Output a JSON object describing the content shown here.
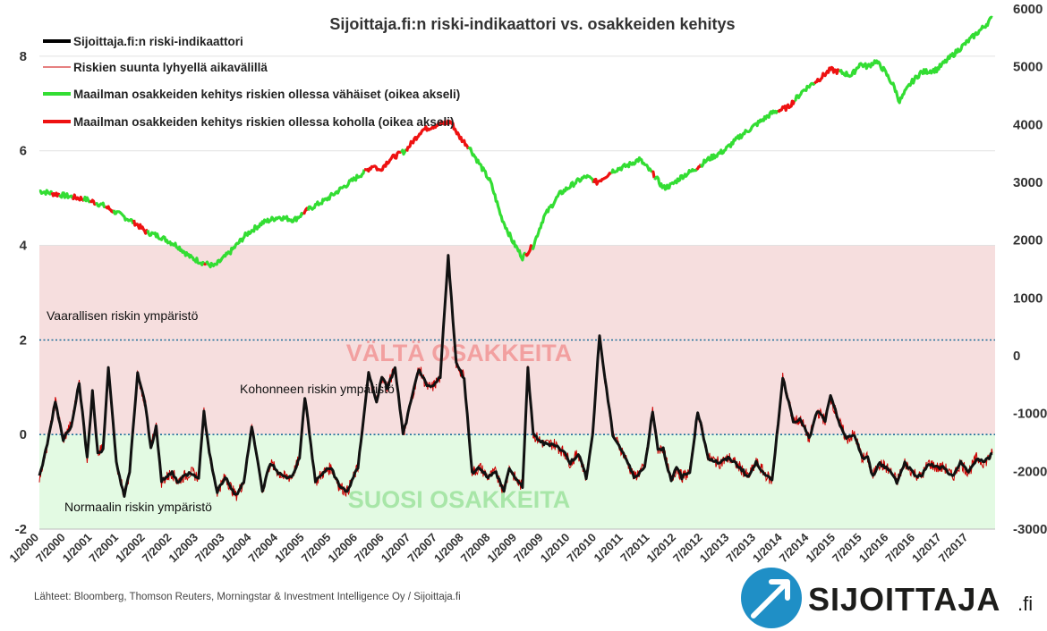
{
  "chart_data": {
    "type": "line",
    "title": "Sijoittaja.fi:n riski-indikaattori vs. osakkeiden kehitys",
    "left_axis": {
      "ylim": [
        -2,
        9
      ],
      "ticks": [
        -2,
        0,
        2,
        4,
        6,
        8
      ]
    },
    "right_axis": {
      "ylim": [
        -3000,
        6000
      ],
      "ticks": [
        -3000,
        -2000,
        -1000,
        0,
        1000,
        2000,
        3000,
        4000,
        5000,
        6000
      ]
    },
    "x_ticks": [
      "1/2000",
      "7/2000",
      "1/2001",
      "7/2001",
      "1/2002",
      "7/2002",
      "1/2003",
      "7/2003",
      "1/2004",
      "7/2004",
      "1/2005",
      "7/2005",
      "1/2006",
      "7/2006",
      "1/2007",
      "7/2007",
      "1/2008",
      "7/2008",
      "1/2009",
      "7/2009",
      "1/2010",
      "7/2010",
      "1/2011",
      "7/2011",
      "1/2012",
      "7/2012",
      "1/2013",
      "7/2013",
      "1/2014",
      "7/2014",
      "1/2015",
      "7/2015",
      "1/2016",
      "7/2016",
      "1/2017",
      "7/2017"
    ],
    "x_range": [
      2000.0,
      2018.0
    ],
    "legend": {
      "position": "top-left",
      "items": [
        {
          "label": "Sijoittaja.fi:n riski-indikaattori",
          "color": "#000000",
          "width": 4
        },
        {
          "label": "Riskien suunta lyhyellä aikavälillä",
          "color": "#cc0000",
          "width": 1
        },
        {
          "label": "Maailman osakkeiden kehitys riskien ollessa vähäiset (oikea akseli)",
          "color": "#33dd33",
          "width": 4
        },
        {
          "label": "Maailman osakkeiden kehitys riskien ollessa koholla (oikea akseli)",
          "color": "#ee1111",
          "width": 4
        }
      ]
    },
    "zones": [
      {
        "from": 0,
        "to": 4,
        "color": "#f6dede",
        "label": "VÄLTÄ OSAKKEITA",
        "label_color": "#f2a0a0"
      },
      {
        "from": -2,
        "to": 0,
        "color": "#e3fae3",
        "label": "SUOSI OSAKKEITA",
        "label_color": "#a8e6a8"
      }
    ],
    "threshold_lines": [
      0,
      2
    ],
    "annotations": [
      "Vaarallisen riskin ympäristö",
      "Kohonneen riskin ympäristö",
      "Normaalin riskin ympäristö"
    ],
    "risk_indicator": {
      "x": [
        2000.0,
        2000.15,
        2000.3,
        2000.45,
        2000.6,
        2000.75,
        2000.9,
        2001.0,
        2001.1,
        2001.2,
        2001.3,
        2001.45,
        2001.6,
        2001.7,
        2001.85,
        2002.0,
        2002.1,
        2002.2,
        2002.3,
        2002.5,
        2002.6,
        2002.7,
        2002.85,
        2003.0,
        2003.1,
        2003.2,
        2003.35,
        2003.5,
        2003.7,
        2003.85,
        2004.0,
        2004.2,
        2004.35,
        2004.5,
        2004.6,
        2004.75,
        2004.9,
        2005.0,
        2005.2,
        2005.35,
        2005.5,
        2005.65,
        2005.8,
        2006.0,
        2006.2,
        2006.35,
        2006.45,
        2006.55,
        2006.7,
        2006.85,
        2007.0,
        2007.15,
        2007.3,
        2007.4,
        2007.55,
        2007.7,
        2007.85,
        2008.0,
        2008.15,
        2008.3,
        2008.45,
        2008.6,
        2008.75,
        2008.85,
        2009.0,
        2009.1,
        2009.2,
        2009.3,
        2009.5,
        2009.7,
        2009.9,
        2010.0,
        2010.15,
        2010.3,
        2010.42,
        2010.55,
        2010.65,
        2010.8,
        2011.0,
        2011.2,
        2011.4,
        2011.55,
        2011.65,
        2011.75,
        2011.9,
        2012.0,
        2012.1,
        2012.25,
        2012.4,
        2012.6,
        2012.8,
        2013.0,
        2013.2,
        2013.35,
        2013.5,
        2013.65,
        2013.8,
        2014.0,
        2014.2,
        2014.35,
        2014.5,
        2014.65,
        2014.8,
        2014.9,
        2015.05,
        2015.2,
        2015.35,
        2015.5,
        2015.6,
        2015.7,
        2015.8,
        2015.95,
        2016.05,
        2016.15,
        2016.3,
        2016.45,
        2016.6,
        2016.75,
        2016.9,
        2017.05,
        2017.2,
        2017.35,
        2017.5,
        2017.65,
        2017.8,
        2017.95
      ],
      "y": [
        -0.9,
        -0.2,
        0.7,
        -0.1,
        0.2,
        1.1,
        -0.5,
        0.9,
        -0.4,
        -0.3,
        1.4,
        -0.6,
        -1.3,
        -0.8,
        1.3,
        0.6,
        -0.3,
        0.2,
        -1.0,
        -0.8,
        -1.0,
        -0.9,
        -0.8,
        -0.9,
        0.5,
        -0.4,
        -1.2,
        -0.9,
        -1.3,
        -1.0,
        0.2,
        -1.2,
        -0.6,
        -0.8,
        -0.9,
        -0.9,
        -0.5,
        0.8,
        -1.0,
        -0.8,
        -0.7,
        -1.1,
        -1.2,
        -0.7,
        1.3,
        0.7,
        1.2,
        1.0,
        1.4,
        0.0,
        0.7,
        1.4,
        1.0,
        1.0,
        1.2,
        3.8,
        1.5,
        1.2,
        -0.8,
        -0.7,
        -0.9,
        -0.8,
        -1.2,
        -0.7,
        -1.0,
        -1.1,
        1.4,
        0.0,
        -0.2,
        -0.2,
        -0.4,
        -0.6,
        -0.4,
        -0.9,
        0.0,
        2.1,
        1.2,
        0.0,
        -0.4,
        -0.9,
        -0.7,
        0.5,
        -0.3,
        -0.3,
        -1.0,
        -0.7,
        -0.9,
        -0.8,
        0.5,
        -0.5,
        -0.6,
        -0.5,
        -0.7,
        -0.9,
        -0.6,
        -0.8,
        -1.0,
        1.2,
        0.3,
        0.3,
        -0.1,
        0.5,
        0.3,
        0.8,
        0.3,
        -0.1,
        0.0,
        -0.5,
        -0.5,
        -0.9,
        -0.6,
        -0.7,
        -0.8,
        -1.0,
        -0.6,
        -0.8,
        -0.9,
        -0.6,
        -0.7,
        -0.7,
        -0.9,
        -0.6,
        -0.8,
        -0.5,
        -0.6,
        -0.4
      ]
    },
    "stocks": {
      "x": [
        2000.0,
        2000.3,
        2000.6,
        2000.9,
        2001.2,
        2001.5,
        2001.8,
        2002.0,
        2002.3,
        2002.6,
        2002.85,
        2003.1,
        2003.3,
        2003.6,
        2003.9,
        2004.2,
        2004.5,
        2004.8,
        2005.1,
        2005.4,
        2005.7,
        2006.0,
        2006.3,
        2006.4,
        2006.6,
        2006.9,
        2007.2,
        2007.5,
        2007.75,
        2007.9,
        2008.1,
        2008.3,
        2008.5,
        2008.7,
        2008.9,
        2009.1,
        2009.3,
        2009.5,
        2009.8,
        2010.1,
        2010.3,
        2010.5,
        2010.8,
        2011.1,
        2011.3,
        2011.6,
        2011.75,
        2011.9,
        2012.1,
        2012.3,
        2012.6,
        2012.9,
        2013.2,
        2013.5,
        2013.8,
        2014.1,
        2014.4,
        2014.7,
        2014.9,
        2015.1,
        2015.3,
        2015.45,
        2015.6,
        2015.75,
        2015.9,
        2016.1,
        2016.2,
        2016.4,
        2016.6,
        2016.9,
        2017.2,
        2017.5,
        2017.8,
        2017.95
      ],
      "y": [
        2850,
        2800,
        2750,
        2700,
        2600,
        2450,
        2300,
        2150,
        2050,
        1900,
        1700,
        1600,
        1550,
        1800,
        2100,
        2300,
        2400,
        2350,
        2550,
        2700,
        2900,
        3100,
        3300,
        3200,
        3400,
        3550,
        3900,
        4000,
        4050,
        3800,
        3600,
        3300,
        3000,
        2400,
        2000,
        1700,
        1900,
        2400,
        2800,
        3000,
        3100,
        3000,
        3200,
        3300,
        3400,
        3100,
        2900,
        2950,
        3100,
        3200,
        3400,
        3550,
        3800,
        4000,
        4200,
        4300,
        4600,
        4800,
        4950,
        4900,
        4850,
        5050,
        5000,
        5100,
        4950,
        4650,
        4400,
        4700,
        4900,
        4950,
        5200,
        5450,
        5700,
        5850
      ]
    },
    "source": "Lähteet: Bloomberg, Thomson Reuters, Morningstar & Investment Intelligence Oy / Sijoittaja.fi",
    "logo": {
      "text": "SIJOITTAJA",
      "suffix": ".fi"
    }
  }
}
